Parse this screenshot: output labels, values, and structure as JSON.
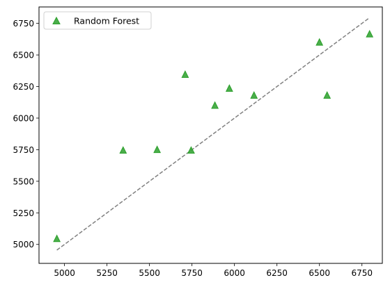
{
  "chart_data": {
    "type": "scatter",
    "title": "",
    "xlabel": "",
    "ylabel": "",
    "xlim": [
      4850,
      6870
    ],
    "ylim": [
      4850,
      6880
    ],
    "xticks": [
      5000,
      5250,
      5500,
      5750,
      6000,
      6250,
      6500,
      6750
    ],
    "yticks": [
      5000,
      5250,
      5500,
      5750,
      6000,
      6250,
      6500,
      6750
    ],
    "grid": false,
    "legend": {
      "position": "top-left",
      "entries": [
        "Random Forest"
      ]
    },
    "series": [
      {
        "name": "Random Forest",
        "marker": "triangle",
        "color": "#2ca02c",
        "x": [
          4955,
          5345,
          5545,
          5710,
          5745,
          5885,
          5970,
          6115,
          6500,
          6545,
          6795
        ],
        "y": [
          5045,
          5745,
          5750,
          6345,
          5745,
          6100,
          6235,
          6180,
          6600,
          6180,
          6665
        ]
      }
    ],
    "reference_line": {
      "style": "dashed",
      "color": "#808080",
      "x": [
        4955,
        6795
      ],
      "y": [
        4955,
        6795
      ]
    }
  }
}
